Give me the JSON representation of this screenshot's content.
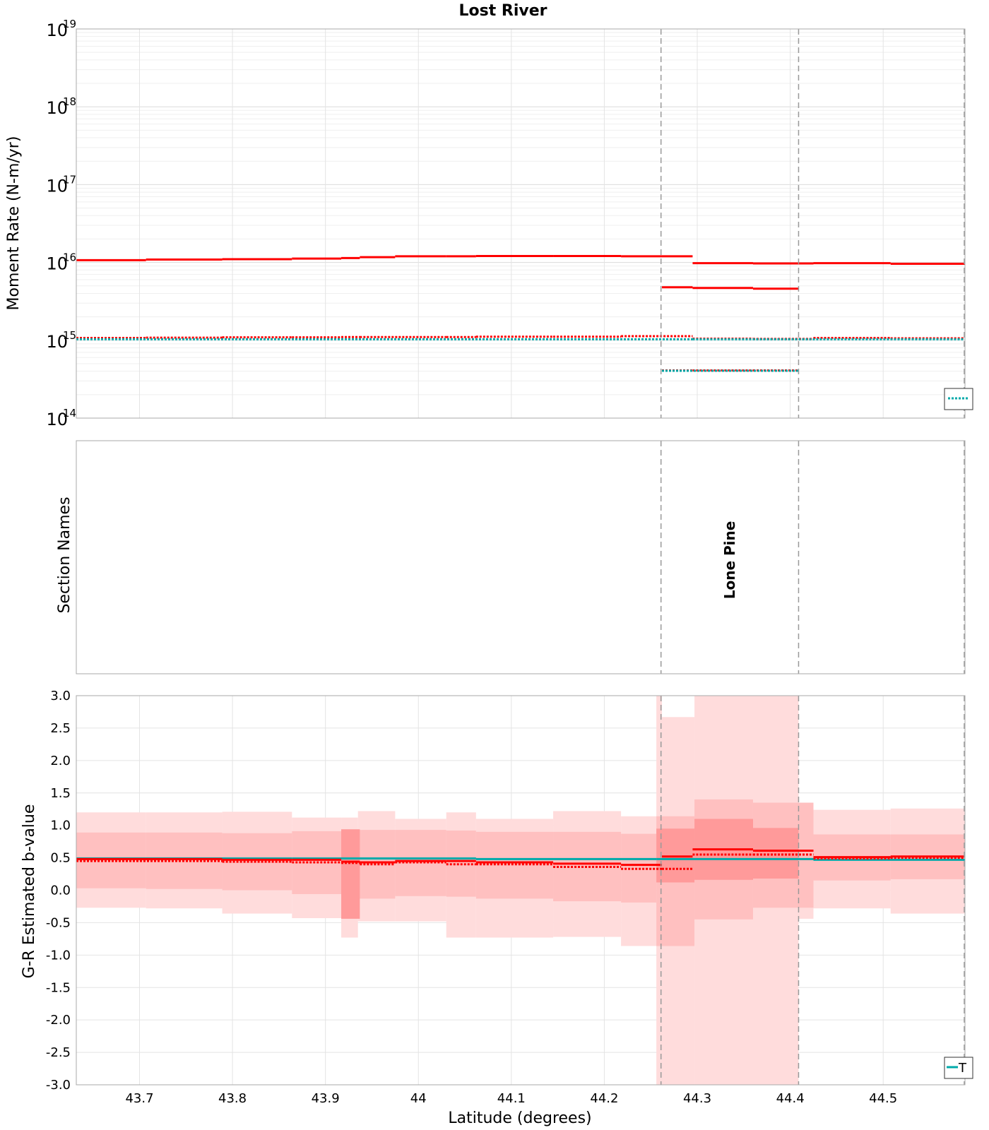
{
  "chart_data": {
    "type": "line",
    "title": "Lost River",
    "xlabel": "Latitude (degrees)",
    "xlim": [
      43.632,
      44.588
    ],
    "xticks": [
      43.7,
      43.8,
      43.9,
      44,
      44.1,
      44.2,
      44.3,
      44.4,
      44.5
    ],
    "xtick_labels": [
      "43.7",
      "43.8",
      "43.9",
      "44",
      "44.1",
      "44.2",
      "44.3",
      "44.4",
      "44.5"
    ],
    "section_boundaries": [
      44.261,
      44.409
    ],
    "grid": true,
    "panels": [
      {
        "id": "moment",
        "ylabel": "Moment Rate (N-m/yr)",
        "yscale": "log",
        "ylim": [
          100000000000000.0,
          1e+19
        ],
        "ytick_exponents": [
          14,
          15,
          16,
          17,
          18,
          19
        ],
        "ytick_base": "10",
        "series": [
          {
            "color": "#ff0000",
            "style": "solid",
            "segments": [
              [
                43.632,
                43.707,
                1.07e+16
              ],
              [
                43.707,
                43.789,
                1.09e+16
              ],
              [
                43.789,
                43.864,
                1.1e+16
              ],
              [
                43.864,
                43.917,
                1.12e+16
              ],
              [
                43.917,
                43.937,
                1.14e+16
              ],
              [
                43.937,
                43.975,
                1.17e+16
              ],
              [
                43.975,
                44.03,
                1.2e+16
              ],
              [
                44.03,
                44.062,
                1.2e+16
              ],
              [
                44.062,
                44.145,
                1.21e+16
              ],
              [
                44.145,
                44.218,
                1.21e+16
              ],
              [
                44.218,
                44.295,
                1.2e+16
              ],
              [
                44.295,
                44.36,
                9800000000000000.0
              ],
              [
                44.36,
                44.425,
                9700000000000000.0
              ],
              [
                44.425,
                44.508,
                9800000000000000.0
              ],
              [
                44.508,
                44.588,
                9600000000000000.0
              ]
            ]
          },
          {
            "color": "#ff0000",
            "style": "solid",
            "segments": [
              [
                44.262,
                44.295,
                4800000000000000.0
              ],
              [
                44.295,
                44.36,
                4700000000000000.0
              ],
              [
                44.36,
                44.409,
                4600000000000000.0
              ]
            ]
          },
          {
            "color": "#ff0000",
            "style": "dotted",
            "segments": [
              [
                43.632,
                43.707,
                1070000000000000.0
              ],
              [
                43.707,
                43.789,
                1080000000000000.0
              ],
              [
                43.789,
                43.864,
                1090000000000000.0
              ],
              [
                43.864,
                43.917,
                1090000000000000.0
              ],
              [
                43.917,
                43.937,
                1100000000000000.0
              ],
              [
                43.937,
                43.975,
                1100000000000000.0
              ],
              [
                43.975,
                44.03,
                1100000000000000.0
              ],
              [
                44.03,
                44.062,
                1100000000000000.0
              ],
              [
                44.062,
                44.145,
                1110000000000000.0
              ],
              [
                44.145,
                44.218,
                1110000000000000.0
              ],
              [
                44.218,
                44.295,
                1130000000000000.0
              ],
              [
                44.295,
                44.36,
                1050000000000000.0
              ],
              [
                44.36,
                44.425,
                1040000000000000.0
              ],
              [
                44.425,
                44.508,
                1070000000000000.0
              ],
              [
                44.508,
                44.588,
                1060000000000000.0
              ]
            ]
          },
          {
            "color": "#00aaaa",
            "style": "dotted",
            "segments": [
              [
                43.632,
                44.295,
                1030000000000000.0
              ],
              [
                44.295,
                44.588,
                1030000000000000.0
              ]
            ]
          },
          {
            "color": "#ff0000",
            "style": "dotted",
            "segments": [
              [
                44.262,
                44.295,
                410000000000000.0
              ],
              [
                44.295,
                44.36,
                410000000000000.0
              ],
              [
                44.36,
                44.409,
                410000000000000.0
              ]
            ]
          },
          {
            "color": "#00aaaa",
            "style": "dotted",
            "segments": [
              [
                44.262,
                44.409,
                405000000000000.0
              ]
            ]
          }
        ]
      },
      {
        "id": "sections",
        "ylabel": "Section Names",
        "section_labels": [
          {
            "text": "Lone Pine",
            "from": 44.261,
            "to": 44.409
          }
        ]
      },
      {
        "id": "bvalue",
        "ylabel": "G-R Estimated b-value",
        "ylim": [
          -3.0,
          3.0
        ],
        "yticks": [
          3.0,
          2.5,
          2.0,
          1.5,
          1.0,
          0.5,
          0.0,
          -0.5,
          -1.0,
          -1.5,
          -2.0,
          -2.5,
          -3.0
        ],
        "ytick_labels": [
          "3.0",
          "2.5",
          "2.0",
          "1.5",
          "1.0",
          "0.5",
          "0.0",
          "-0.5",
          "-1.0",
          "-1.5",
          "-2.0",
          "-2.5",
          "-3.0"
        ],
        "bands_outer": [
          [
            43.632,
            43.707,
            -0.27,
            1.2
          ],
          [
            43.707,
            43.789,
            -0.28,
            1.2
          ],
          [
            43.789,
            43.864,
            -0.36,
            1.21
          ],
          [
            43.864,
            43.917,
            -0.43,
            1.12
          ],
          [
            43.917,
            43.935,
            -0.73,
            1.12
          ],
          [
            43.935,
            43.975,
            -0.48,
            1.22
          ],
          [
            43.975,
            44.03,
            -0.48,
            1.1
          ],
          [
            44.03,
            44.062,
            -0.73,
            1.2
          ],
          [
            44.062,
            44.145,
            -0.73,
            1.1
          ],
          [
            44.145,
            44.218,
            -0.72,
            1.22
          ],
          [
            44.218,
            44.256,
            -0.86,
            1.14
          ],
          [
            44.256,
            44.262,
            -3.0,
            3.0
          ],
          [
            44.262,
            44.297,
            -3.0,
            2.67
          ],
          [
            44.297,
            44.409,
            -3.0,
            3.0
          ],
          [
            44.409,
            44.425,
            -0.44,
            1.35
          ],
          [
            44.425,
            44.508,
            -0.28,
            1.24
          ],
          [
            44.508,
            44.588,
            -0.36,
            1.26
          ]
        ],
        "bands_inner": [
          [
            43.632,
            43.707,
            0.03,
            0.89
          ],
          [
            43.707,
            43.789,
            0.02,
            0.89
          ],
          [
            43.789,
            43.864,
            0.0,
            0.88
          ],
          [
            43.864,
            43.917,
            -0.06,
            0.91
          ],
          [
            43.917,
            43.935,
            -0.06,
            0.91
          ],
          [
            43.935,
            43.975,
            -0.13,
            0.93
          ],
          [
            43.975,
            44.03,
            -0.09,
            0.93
          ],
          [
            44.03,
            44.062,
            -0.1,
            0.92
          ],
          [
            44.062,
            44.145,
            -0.13,
            0.9
          ],
          [
            44.145,
            44.218,
            -0.17,
            0.9
          ],
          [
            44.218,
            44.256,
            -0.19,
            0.87
          ],
          [
            44.256,
            44.262,
            -0.86,
            1.14
          ],
          [
            44.262,
            44.297,
            -0.86,
            1.14
          ],
          [
            44.297,
            44.36,
            -0.45,
            1.4
          ],
          [
            44.36,
            44.409,
            -0.27,
            1.35
          ],
          [
            44.409,
            44.425,
            -0.27,
            1.35
          ],
          [
            44.425,
            44.508,
            0.15,
            0.86
          ],
          [
            44.508,
            44.588,
            0.17,
            0.86
          ]
        ],
        "bands_core": [
          [
            43.917,
            43.937,
            -0.44,
            0.94
          ],
          [
            44.256,
            44.297,
            0.12,
            0.95
          ],
          [
            44.297,
            44.36,
            0.16,
            1.1
          ],
          [
            44.36,
            44.409,
            0.18,
            0.96
          ]
        ],
        "series": [
          {
            "color": "#00aaaa",
            "style": "solid",
            "segments": [
              [
                43.632,
                43.864,
                0.49
              ],
              [
                43.864,
                44.062,
                0.49
              ],
              [
                44.062,
                44.256,
                0.48
              ],
              [
                44.256,
                44.425,
                0.48
              ],
              [
                44.425,
                44.588,
                0.47
              ]
            ]
          },
          {
            "color": "#ff0000",
            "style": "solid",
            "segments": [
              [
                43.632,
                43.789,
                0.48
              ],
              [
                43.789,
                43.864,
                0.47
              ],
              [
                43.864,
                43.917,
                0.47
              ],
              [
                43.917,
                43.937,
                0.44
              ],
              [
                43.937,
                43.975,
                0.43
              ],
              [
                43.975,
                44.03,
                0.45
              ],
              [
                44.03,
                44.062,
                0.45
              ],
              [
                44.062,
                44.145,
                0.43
              ],
              [
                44.145,
                44.218,
                0.41
              ],
              [
                44.218,
                44.262,
                0.39
              ],
              [
                44.262,
                44.295,
                0.52
              ],
              [
                44.295,
                44.36,
                0.63
              ],
              [
                44.36,
                44.425,
                0.61
              ],
              [
                44.425,
                44.508,
                0.51
              ],
              [
                44.508,
                44.588,
                0.52
              ]
            ]
          },
          {
            "color": "#ff0000",
            "style": "dotted",
            "segments": [
              [
                43.632,
                43.789,
                0.45
              ],
              [
                43.789,
                43.864,
                0.44
              ],
              [
                43.864,
                43.917,
                0.43
              ],
              [
                43.917,
                43.937,
                0.42
              ],
              [
                43.937,
                43.975,
                0.4
              ],
              [
                43.975,
                44.03,
                0.43
              ],
              [
                44.03,
                44.062,
                0.4
              ],
              [
                44.062,
                44.145,
                0.4
              ],
              [
                44.145,
                44.218,
                0.36
              ],
              [
                44.218,
                44.262,
                0.33
              ],
              [
                44.262,
                44.295,
                0.33
              ],
              [
                44.295,
                44.36,
                0.55
              ],
              [
                44.36,
                44.425,
                0.55
              ],
              [
                44.425,
                44.508,
                0.49
              ],
              [
                44.508,
                44.588,
                0.5
              ]
            ]
          }
        ],
        "legend": {
          "visible_text": "T",
          "placement": "bottom-right"
        }
      }
    ],
    "moment_legend_placement": "bottom-right",
    "colors": {
      "red": "#ff0000",
      "teal": "#00aaaa",
      "band_outer": "#ffdcdc",
      "band_inner": "#ffc0c0",
      "band_core": "#ff9a9a"
    }
  }
}
